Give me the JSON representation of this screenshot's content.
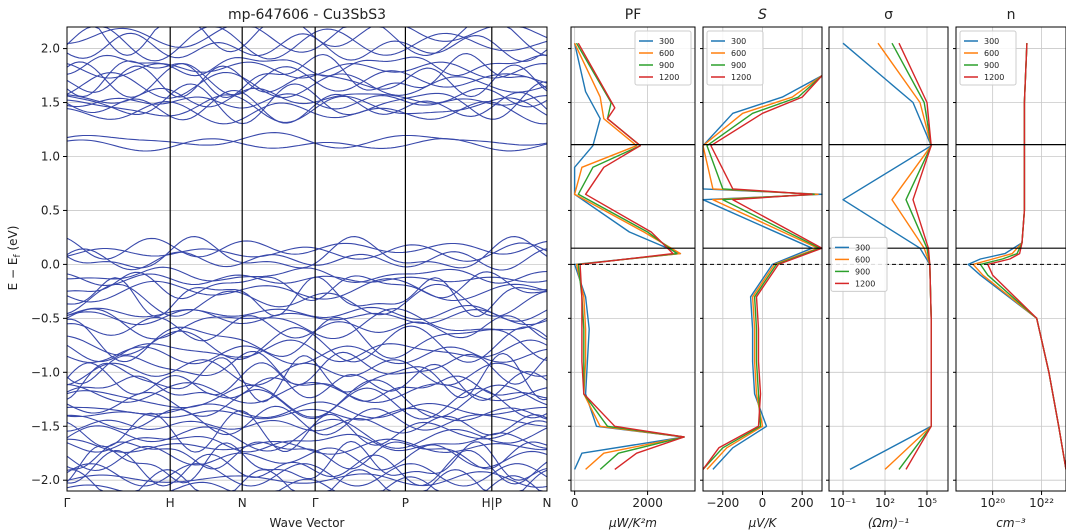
{
  "figure": {
    "title": "mp-647606 - Cu3SbS3",
    "ylabel": "E − E_f (eV)",
    "xlabel": "Wave Vector"
  },
  "chart_data": [
    {
      "type": "line",
      "name": "band_structure",
      "title": "mp-647606 - Cu3SbS3",
      "xlabel": "Wave Vector",
      "ylabel": "E − E_f (eV)",
      "ylim": [
        -2.1,
        2.2
      ],
      "grid": true,
      "kpoints": [
        {
          "label": "Γ",
          "pos": 0.0
        },
        {
          "label": "H",
          "pos": 0.215
        },
        {
          "label": "N",
          "pos": 0.365
        },
        {
          "label": "Γ",
          "pos": 0.517
        },
        {
          "label": "P",
          "pos": 0.705
        },
        {
          "label": "H|P",
          "pos": 0.885
        },
        {
          "label": "N",
          "pos": 1.0
        }
      ],
      "yticks": [
        -2.0,
        -1.5,
        -1.0,
        -0.5,
        0.0,
        0.5,
        1.0,
        1.5,
        2.0
      ],
      "line_color": "#3949ab",
      "approx_band_energies": {
        "conduction": [
          1.15,
          1.45,
          1.5,
          1.55,
          1.7,
          1.75,
          1.85,
          2.05,
          2.15
        ],
        "valence": [
          0.15,
          0.08,
          -0.1,
          -0.2,
          -0.3,
          -0.45,
          -0.55,
          -0.7,
          -0.8,
          -0.95,
          -1.05,
          -1.15,
          -1.25,
          -1.35,
          -1.45,
          -1.55,
          -1.65,
          -1.75,
          -1.85,
          -1.95,
          -2.05
        ]
      }
    },
    {
      "type": "line",
      "name": "PF",
      "title": "PF",
      "xlabel": "μW/K²m",
      "ylim": [
        -2.1,
        2.2
      ],
      "xlim": [
        -100,
        3300
      ],
      "xticks": [
        "0",
        "2000"
      ],
      "legend": "top-right",
      "series": [
        {
          "name": "300",
          "color": "#1f77b4",
          "y": [
            2.05,
            1.6,
            1.35,
            1.1,
            0.9,
            0.65,
            0.3,
            0.1,
            0.0,
            -0.3,
            -0.6,
            -0.9,
            -1.2,
            -1.5,
            -1.6,
            -1.75,
            -1.9
          ],
          "x": [
            0,
            300,
            700,
            500,
            0,
            0,
            1500,
            2900,
            0,
            300,
            400,
            350,
            300,
            600,
            3000,
            200,
            0
          ]
        },
        {
          "name": "600",
          "color": "#ff7f0e",
          "y": [
            2.05,
            1.55,
            1.35,
            1.1,
            0.9,
            0.65,
            0.3,
            0.1,
            0.0,
            -0.3,
            -0.6,
            -0.9,
            -1.2,
            -1.5,
            -1.6,
            -1.75,
            -1.9
          ],
          "x": [
            0,
            700,
            800,
            1700,
            200,
            0,
            1900,
            2900,
            50,
            250,
            300,
            300,
            250,
            700,
            3000,
            800,
            300
          ]
        },
        {
          "name": "900",
          "color": "#2ca02c",
          "y": [
            2.05,
            1.5,
            1.35,
            1.1,
            0.9,
            0.65,
            0.3,
            0.1,
            0.0,
            -0.3,
            -0.6,
            -0.9,
            -1.2,
            -1.5,
            -1.6,
            -1.75,
            -1.9
          ],
          "x": [
            50,
            1000,
            900,
            1800,
            500,
            100,
            2000,
            2800,
            100,
            200,
            250,
            250,
            250,
            900,
            3000,
            1200,
            700
          ]
        },
        {
          "name": "1200",
          "color": "#d62728",
          "y": [
            2.05,
            1.45,
            1.35,
            1.1,
            0.9,
            0.65,
            0.3,
            0.1,
            0.0,
            -0.3,
            -0.6,
            -0.9,
            -1.2,
            -1.5,
            -1.6,
            -1.75,
            -1.9
          ],
          "x": [
            100,
            1100,
            900,
            1800,
            800,
            300,
            2100,
            2700,
            150,
            200,
            200,
            200,
            250,
            1100,
            3000,
            1700,
            1100
          ]
        }
      ]
    },
    {
      "type": "line",
      "name": "S",
      "title": "S",
      "xlabel": "μV/K",
      "ylim": [
        -2.1,
        2.2
      ],
      "xlim": [
        -300,
        300
      ],
      "xticks": [
        "−200",
        "0",
        "200"
      ],
      "legend": "top-left",
      "series": [
        {
          "name": "300",
          "color": "#1f77b4",
          "y": [
            1.75,
            1.55,
            1.4,
            1.1,
            0.7,
            0.65,
            0.6,
            0.15,
            0.0,
            -0.3,
            -0.6,
            -0.9,
            -1.2,
            -1.5,
            -1.7,
            -1.9
          ],
          "x": [
            300,
            100,
            -150,
            -300,
            -300,
            300,
            -300,
            250,
            50,
            -60,
            -50,
            -50,
            -40,
            20,
            -150,
            -250
          ]
        },
        {
          "name": "600",
          "color": "#ff7f0e",
          "y": [
            1.75,
            1.55,
            1.4,
            1.1,
            0.7,
            0.65,
            0.6,
            0.15,
            0.0,
            -0.3,
            -0.6,
            -0.9,
            -1.2,
            -1.5,
            -1.7,
            -1.9
          ],
          "x": [
            300,
            150,
            -100,
            -300,
            -250,
            280,
            -250,
            280,
            60,
            -50,
            -40,
            -40,
            -30,
            0,
            -180,
            -280
          ]
        },
        {
          "name": "900",
          "color": "#2ca02c",
          "y": [
            1.75,
            1.55,
            1.4,
            1.1,
            0.7,
            0.65,
            0.6,
            0.15,
            0.0,
            -0.3,
            -0.6,
            -0.9,
            -1.2,
            -1.5,
            -1.7,
            -1.9
          ],
          "x": [
            300,
            180,
            -50,
            -280,
            -200,
            260,
            -200,
            290,
            70,
            -40,
            -30,
            -30,
            -20,
            -10,
            -200,
            -300
          ]
        },
        {
          "name": "1200",
          "color": "#d62728",
          "y": [
            1.75,
            1.55,
            1.4,
            1.1,
            0.7,
            0.65,
            0.6,
            0.15,
            0.0,
            -0.3,
            -0.6,
            -0.9,
            -1.2,
            -1.5,
            -1.7,
            -1.9
          ],
          "x": [
            300,
            200,
            0,
            -260,
            -150,
            250,
            -150,
            300,
            80,
            -30,
            -20,
            -20,
            -10,
            -20,
            -220,
            -300
          ]
        }
      ]
    },
    {
      "type": "line",
      "name": "sigma",
      "title": "σ",
      "xlabel": "(Ωm)⁻¹",
      "xscale": "log",
      "ylim": [
        -2.1,
        2.2
      ],
      "xlim_log10": [
        -2,
        6.5
      ],
      "xticks": [
        "10⁻¹",
        "10²",
        "10⁵"
      ],
      "legend": "center-left",
      "series": [
        {
          "name": "300",
          "color": "#1f77b4",
          "y": [
            2.05,
            1.5,
            1.1,
            0.6,
            0.15,
            0.0,
            -0.5,
            -1.0,
            -1.5,
            -1.9
          ],
          "log10x": [
            -1,
            4,
            5.3,
            -1,
            4.5,
            5.2,
            5.3,
            5.3,
            5.3,
            -0.5
          ]
        },
        {
          "name": "600",
          "color": "#ff7f0e",
          "y": [
            2.05,
            1.5,
            1.1,
            0.6,
            0.15,
            0.0,
            -0.5,
            -1.0,
            -1.5,
            -1.9
          ],
          "log10x": [
            1.5,
            4.5,
            5.3,
            2.5,
            4.8,
            5.2,
            5.3,
            5.3,
            5.3,
            2
          ]
        },
        {
          "name": "900",
          "color": "#2ca02c",
          "y": [
            2.05,
            1.5,
            1.1,
            0.6,
            0.15,
            0.0,
            -0.5,
            -1.0,
            -1.5,
            -1.9
          ],
          "log10x": [
            2.5,
            4.8,
            5.3,
            3.5,
            5.0,
            5.2,
            5.3,
            5.3,
            5.3,
            3
          ]
        },
        {
          "name": "1200",
          "color": "#d62728",
          "y": [
            2.05,
            1.5,
            1.1,
            0.6,
            0.15,
            0.0,
            -0.5,
            -1.0,
            -1.5,
            -1.9
          ],
          "log10x": [
            3,
            5.0,
            5.3,
            4.0,
            5.1,
            5.2,
            5.3,
            5.3,
            5.3,
            3.5
          ]
        }
      ]
    },
    {
      "type": "line",
      "name": "n",
      "title": "n",
      "xlabel": "cm⁻³",
      "xscale": "log",
      "ylim": [
        -2.1,
        2.2
      ],
      "xlim_log10": [
        18.5,
        23.0
      ],
      "xticks": [
        "10²⁰",
        "10²²"
      ],
      "legend": "top-left",
      "series": [
        {
          "name": "300",
          "color": "#1f77b4",
          "y": [
            2.05,
            1.5,
            1.0,
            0.5,
            0.2,
            0.1,
            0.05,
            0.0,
            -0.1,
            -0.5,
            -1.0,
            -1.5,
            -1.9
          ],
          "log10x": [
            21.4,
            21.3,
            21.3,
            21.3,
            21.2,
            20.5,
            19.5,
            19.0,
            19.5,
            21.8,
            22.3,
            22.7,
            23.0
          ]
        },
        {
          "name": "600",
          "color": "#ff7f0e",
          "y": [
            2.05,
            1.5,
            1.0,
            0.5,
            0.2,
            0.1,
            0.05,
            0.0,
            -0.1,
            -0.5,
            -1.0,
            -1.5,
            -1.9
          ],
          "log10x": [
            21.4,
            21.3,
            21.3,
            21.3,
            21.2,
            20.8,
            20.0,
            19.2,
            19.6,
            21.8,
            22.3,
            22.7,
            23.0
          ]
        },
        {
          "name": "900",
          "color": "#2ca02c",
          "y": [
            2.05,
            1.5,
            1.0,
            0.5,
            0.2,
            0.1,
            0.05,
            0.0,
            -0.1,
            -0.5,
            -1.0,
            -1.5,
            -1.9
          ],
          "log10x": [
            21.4,
            21.3,
            21.3,
            21.3,
            21.2,
            21.0,
            20.4,
            19.5,
            19.8,
            21.8,
            22.3,
            22.7,
            23.0
          ]
        },
        {
          "name": "1200",
          "color": "#d62728",
          "y": [
            2.05,
            1.5,
            1.0,
            0.5,
            0.2,
            0.1,
            0.05,
            0.0,
            -0.1,
            -0.5,
            -1.0,
            -1.5,
            -1.9
          ],
          "log10x": [
            21.4,
            21.3,
            21.3,
            21.3,
            21.2,
            21.1,
            20.7,
            19.8,
            20.0,
            21.8,
            22.3,
            22.7,
            23.0
          ]
        }
      ]
    }
  ],
  "reference_lines": {
    "fermi_dashed": 0.0,
    "vbm": 0.15,
    "cbm": 1.11
  }
}
